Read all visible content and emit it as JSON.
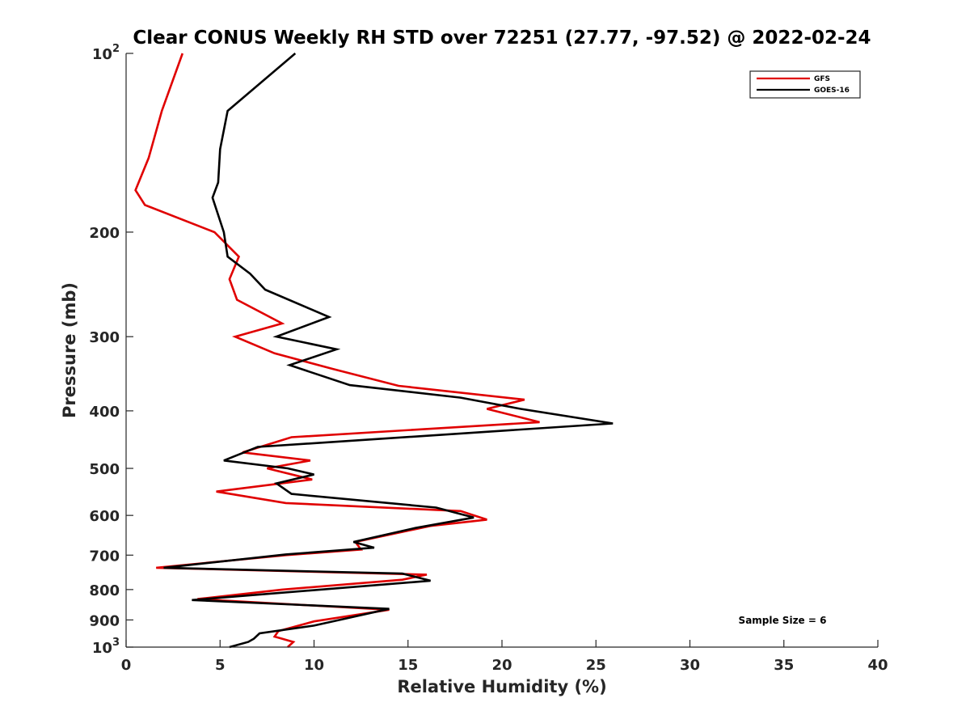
{
  "chart_data": {
    "type": "line",
    "title": "Clear CONUS Weekly RH STD over 72251 (27.77, -97.52) @ 2022-02-24",
    "xlabel": "Relative Humidity (%)",
    "ylabel": "Pressure (mb)",
    "xlim": [
      0,
      40
    ],
    "ylim": [
      100,
      1000
    ],
    "y_scale": "log",
    "y_reversed": true,
    "grid": false,
    "legend_position": "top-right",
    "x_ticks": [
      0,
      5,
      10,
      15,
      20,
      25,
      30,
      35,
      40
    ],
    "y_ticks": [
      {
        "value": 100,
        "base": "10",
        "exp": "2"
      },
      {
        "value": 200,
        "label": "200"
      },
      {
        "value": 300,
        "label": "300"
      },
      {
        "value": 400,
        "label": "400"
      },
      {
        "value": 500,
        "label": "500"
      },
      {
        "value": 600,
        "label": "600"
      },
      {
        "value": 700,
        "label": "700"
      },
      {
        "value": 800,
        "label": "800"
      },
      {
        "value": 900,
        "label": "900"
      },
      {
        "value": 1000,
        "base": "10",
        "exp": "3"
      }
    ],
    "annotation": "Sample Size = 6",
    "series": [
      {
        "name": "GFS",
        "color": "#e00000",
        "points": [
          [
            3.0,
            100
          ],
          [
            1.9,
            125
          ],
          [
            1.2,
            150
          ],
          [
            0.5,
            170
          ],
          [
            1.0,
            180
          ],
          [
            4.7,
            200
          ],
          [
            6.0,
            220
          ],
          [
            5.5,
            240
          ],
          [
            5.9,
            260
          ],
          [
            8.3,
            285
          ],
          [
            5.8,
            300
          ],
          [
            7.9,
            320
          ],
          [
            11.0,
            340
          ],
          [
            14.5,
            363
          ],
          [
            21.2,
            383
          ],
          [
            19.2,
            397
          ],
          [
            22.0,
            418
          ],
          [
            8.8,
            443
          ],
          [
            6.2,
            470
          ],
          [
            9.8,
            485
          ],
          [
            7.5,
            500
          ],
          [
            9.9,
            522
          ],
          [
            4.8,
            547
          ],
          [
            8.5,
            572
          ],
          [
            17.8,
            590
          ],
          [
            19.2,
            610
          ],
          [
            16.2,
            625
          ],
          [
            12.2,
            665
          ],
          [
            12.5,
            685
          ],
          [
            8.5,
            700
          ],
          [
            1.6,
            735
          ],
          [
            16.0,
            755
          ],
          [
            14.7,
            770
          ],
          [
            8.3,
            800
          ],
          [
            3.8,
            830
          ],
          [
            14.0,
            865
          ],
          [
            10.0,
            905
          ],
          [
            8.1,
            940
          ],
          [
            7.9,
            960
          ],
          [
            8.9,
            980
          ],
          [
            8.6,
            1000
          ]
        ]
      },
      {
        "name": "GOES-16",
        "color": "#000000",
        "points": [
          [
            9.0,
            100
          ],
          [
            5.4,
            125
          ],
          [
            5.0,
            145
          ],
          [
            4.9,
            165
          ],
          [
            4.6,
            175
          ],
          [
            5.2,
            200
          ],
          [
            5.4,
            220
          ],
          [
            6.6,
            235
          ],
          [
            7.4,
            250
          ],
          [
            10.8,
            278
          ],
          [
            8.0,
            300
          ],
          [
            11.2,
            315
          ],
          [
            8.7,
            335
          ],
          [
            11.9,
            362
          ],
          [
            17.8,
            380
          ],
          [
            21.0,
            397
          ],
          [
            25.9,
            420
          ],
          [
            7.0,
            460
          ],
          [
            5.2,
            485
          ],
          [
            8.6,
            500
          ],
          [
            10.0,
            512
          ],
          [
            8.0,
            530
          ],
          [
            8.8,
            552
          ],
          [
            16.5,
            582
          ],
          [
            18.5,
            605
          ],
          [
            15.4,
            630
          ],
          [
            12.1,
            665
          ],
          [
            13.2,
            680
          ],
          [
            8.5,
            698
          ],
          [
            2.0,
            735
          ],
          [
            14.7,
            752
          ],
          [
            16.2,
            773
          ],
          [
            3.5,
            833
          ],
          [
            14.0,
            862
          ],
          [
            11.7,
            895
          ],
          [
            10.0,
            920
          ],
          [
            7.1,
            948
          ],
          [
            6.8,
            968
          ],
          [
            6.5,
            980
          ],
          [
            5.5,
            1000
          ]
        ]
      }
    ]
  },
  "legend": {
    "items": [
      {
        "label": "GFS",
        "color": "#e00000"
      },
      {
        "label": "GOES-16",
        "color": "#000000"
      }
    ]
  }
}
